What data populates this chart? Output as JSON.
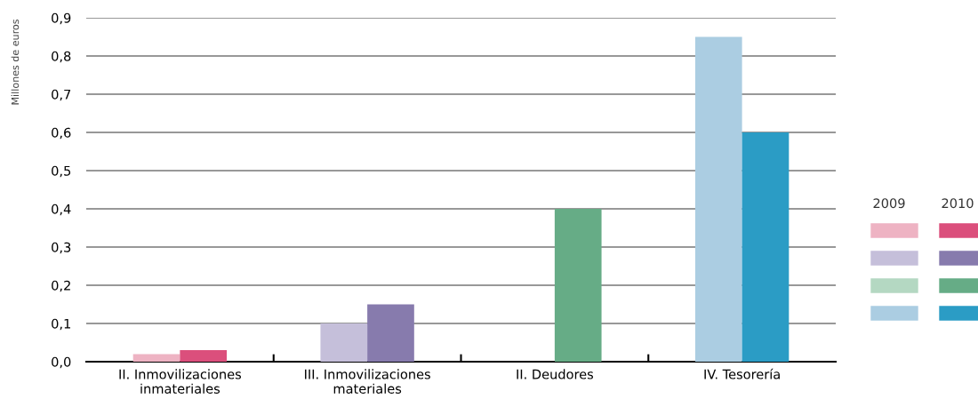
{
  "chart_data": {
    "type": "bar",
    "ylabel": "Millones de euros",
    "categories": [
      "II. Inmovilizaciones\ninmateriales",
      "III. Inmovilizaciones\nmateriales",
      "II. Deudores",
      "IV. Tesorería"
    ],
    "series": [
      {
        "name": "2009",
        "colors": [
          "#eeb3c3",
          "#c5bfda",
          "#b4d8c2",
          "#abcde2"
        ],
        "values": [
          0.02,
          0.1,
          0,
          0.85
        ]
      },
      {
        "name": "2010",
        "colors": [
          "#db4f7c",
          "#877bad",
          "#66ac86",
          "#2b9cc5"
        ],
        "values": [
          0.03,
          0.15,
          0.4,
          0.6
        ]
      }
    ],
    "ylim": [
      0,
      0.9
    ],
    "yticks": [
      {
        "value": 0,
        "label": "0,0"
      },
      {
        "value": 0.1,
        "label": "0,1"
      },
      {
        "value": 0.2,
        "label": "0,2"
      },
      {
        "value": 0.3,
        "label": "0,3"
      },
      {
        "value": 0.4,
        "label": "0,4"
      },
      {
        "value": 0.5,
        "label": "0,5"
      },
      {
        "value": 0.6,
        "label": "0,6"
      },
      {
        "value": 0.7,
        "label": "0,7"
      },
      {
        "value": 0.8,
        "label": "0,8"
      },
      {
        "value": 0.9,
        "label": "0,9"
      }
    ],
    "grid": "y",
    "legend": "right"
  }
}
